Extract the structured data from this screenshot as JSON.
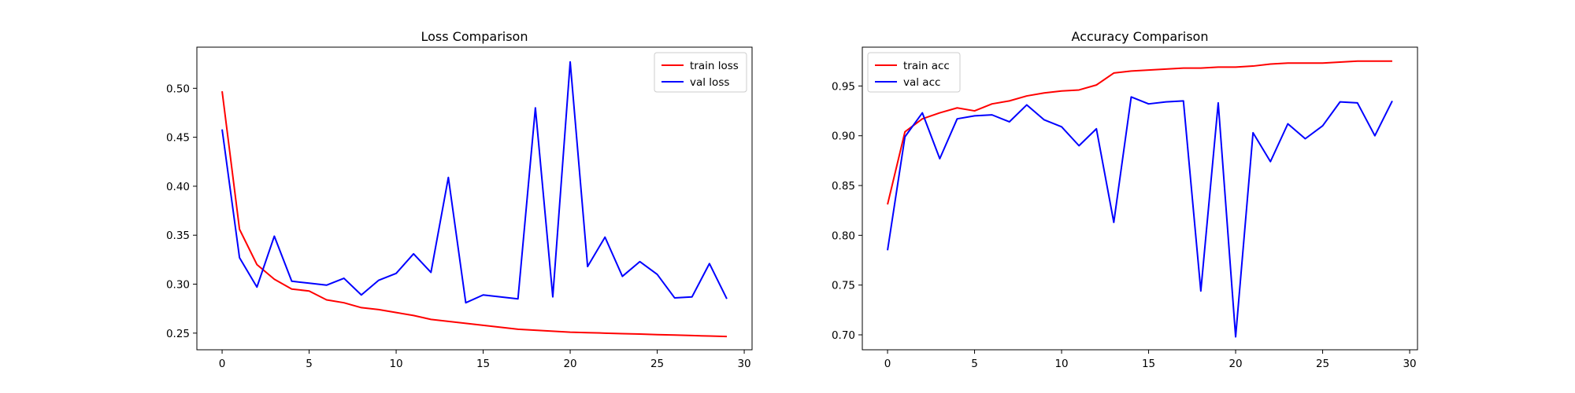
{
  "chart_data": [
    {
      "type": "line",
      "title": "Loss Comparison",
      "xlabel": "",
      "ylabel": "",
      "x": [
        0,
        1,
        2,
        3,
        4,
        5,
        6,
        7,
        8,
        9,
        10,
        11,
        12,
        13,
        14,
        15,
        16,
        17,
        18,
        19,
        20,
        21,
        22,
        23,
        24,
        25,
        26,
        27,
        28,
        29
      ],
      "xlim": [
        -1.45,
        30.45
      ],
      "ylim": [
        0.233,
        0.542
      ],
      "xticks": [
        0,
        5,
        10,
        15,
        20,
        25,
        30
      ],
      "xtick_labels": [
        "0",
        "5",
        "10",
        "15",
        "20",
        "25",
        "30"
      ],
      "yticks": [
        0.25,
        0.3,
        0.35,
        0.4,
        0.45,
        0.5
      ],
      "ytick_labels": [
        "0.25",
        "0.30",
        "0.35",
        "0.40",
        "0.45",
        "0.50"
      ],
      "grid": false,
      "legend": "top-right",
      "series": [
        {
          "name": "train loss",
          "color": "#ff0000",
          "values": [
            0.497,
            0.356,
            0.32,
            0.305,
            0.295,
            0.293,
            0.284,
            0.281,
            0.276,
            0.274,
            0.271,
            0.268,
            0.264,
            0.262,
            0.26,
            0.258,
            0.256,
            0.254,
            0.253,
            0.252,
            0.251,
            0.2505,
            0.25,
            0.2495,
            0.249,
            0.2485,
            0.248,
            0.2475,
            0.247,
            0.2465
          ]
        },
        {
          "name": "val loss",
          "color": "#0000ff",
          "values": [
            0.458,
            0.327,
            0.297,
            0.349,
            0.303,
            0.301,
            0.299,
            0.306,
            0.289,
            0.304,
            0.311,
            0.331,
            0.312,
            0.409,
            0.281,
            0.289,
            0.287,
            0.285,
            0.48,
            0.287,
            0.527,
            0.318,
            0.348,
            0.308,
            0.323,
            0.31,
            0.286,
            0.287,
            0.321,
            0.285
          ]
        }
      ]
    },
    {
      "type": "line",
      "title": "Accuracy Comparison",
      "xlabel": "",
      "ylabel": "",
      "x": [
        0,
        1,
        2,
        3,
        4,
        5,
        6,
        7,
        8,
        9,
        10,
        11,
        12,
        13,
        14,
        15,
        16,
        17,
        18,
        19,
        20,
        21,
        22,
        23,
        24,
        25,
        26,
        27,
        28,
        29
      ],
      "xlim": [
        -1.45,
        30.45
      ],
      "ylim": [
        0.685,
        0.989
      ],
      "xticks": [
        0,
        5,
        10,
        15,
        20,
        25,
        30
      ],
      "xtick_labels": [
        "0",
        "5",
        "10",
        "15",
        "20",
        "25",
        "30"
      ],
      "yticks": [
        0.7,
        0.75,
        0.8,
        0.85,
        0.9,
        0.95
      ],
      "ytick_labels": [
        "0.70",
        "0.75",
        "0.80",
        "0.85",
        "0.90",
        "0.95"
      ],
      "grid": false,
      "legend": "top-left",
      "series": [
        {
          "name": "train acc",
          "color": "#ff0000",
          "values": [
            0.831,
            0.904,
            0.917,
            0.923,
            0.928,
            0.925,
            0.932,
            0.935,
            0.94,
            0.943,
            0.945,
            0.946,
            0.951,
            0.963,
            0.965,
            0.966,
            0.967,
            0.968,
            0.968,
            0.969,
            0.969,
            0.97,
            0.972,
            0.973,
            0.973,
            0.973,
            0.974,
            0.975,
            0.975,
            0.975
          ]
        },
        {
          "name": "val acc",
          "color": "#0000ff",
          "values": [
            0.785,
            0.899,
            0.923,
            0.877,
            0.917,
            0.92,
            0.921,
            0.914,
            0.931,
            0.916,
            0.909,
            0.89,
            0.907,
            0.813,
            0.939,
            0.932,
            0.934,
            0.935,
            0.744,
            0.933,
            0.698,
            0.903,
            0.874,
            0.912,
            0.897,
            0.91,
            0.934,
            0.933,
            0.9,
            0.935
          ]
        }
      ]
    }
  ]
}
